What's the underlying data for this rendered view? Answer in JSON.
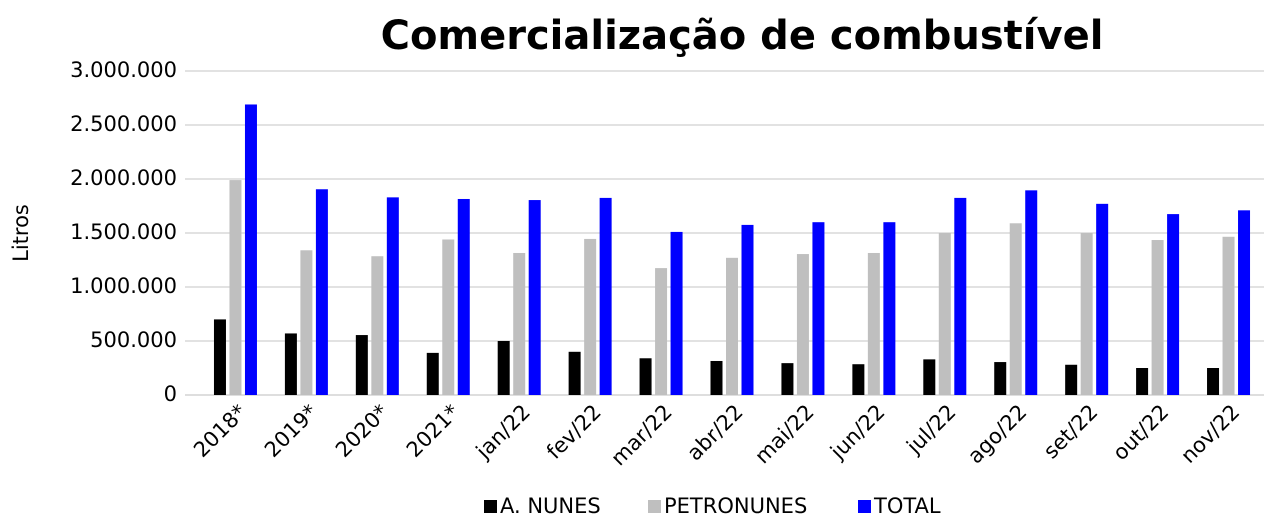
{
  "chart_data": {
    "type": "bar",
    "title": "Comercialização de combustível",
    "y_label": "Litros",
    "categories": [
      "2018*",
      "2019*",
      "2020*",
      "2021*",
      "jan/22",
      "fev/22",
      "mar/22",
      "abr/22",
      "mai/22",
      "jun/22",
      "jul/22",
      "ago/22",
      "set/22",
      "out/22",
      "nov/22"
    ],
    "series": [
      {
        "name": "A. NUNES",
        "color": "#000000",
        "values": [
          700000,
          570000,
          555000,
          390000,
          500000,
          400000,
          340000,
          315000,
          295000,
          285000,
          330000,
          305000,
          280000,
          250000,
          250000
        ]
      },
      {
        "name": "PETRONUNES",
        "color": "#bfbfbf",
        "values": [
          1990000,
          1340000,
          1285000,
          1440000,
          1315000,
          1445000,
          1175000,
          1270000,
          1305000,
          1315000,
          1500000,
          1590000,
          1500000,
          1435000,
          1465000
        ]
      },
      {
        "name": "TOTAL",
        "color": "#0000ff",
        "values": [
          2690000,
          1905000,
          1830000,
          1815000,
          1805000,
          1825000,
          1510000,
          1575000,
          1600000,
          1600000,
          1825000,
          1895000,
          1770000,
          1675000,
          1710000
        ]
      }
    ],
    "ylim": [
      0,
      3000000
    ],
    "yticks": [
      0,
      {
        "value": 500000,
        "label": "500.000"
      },
      {
        "value": 1000000,
        "label": "1.000.000"
      },
      {
        "value": 1500000,
        "label": "1.500.000"
      },
      {
        "value": 2000000,
        "label": "2.000.000"
      },
      {
        "value": 2500000,
        "label": "2.500.000"
      },
      {
        "value": 3000000,
        "label": "3.000.000"
      }
    ],
    "grid": true,
    "legend": "bottom"
  }
}
